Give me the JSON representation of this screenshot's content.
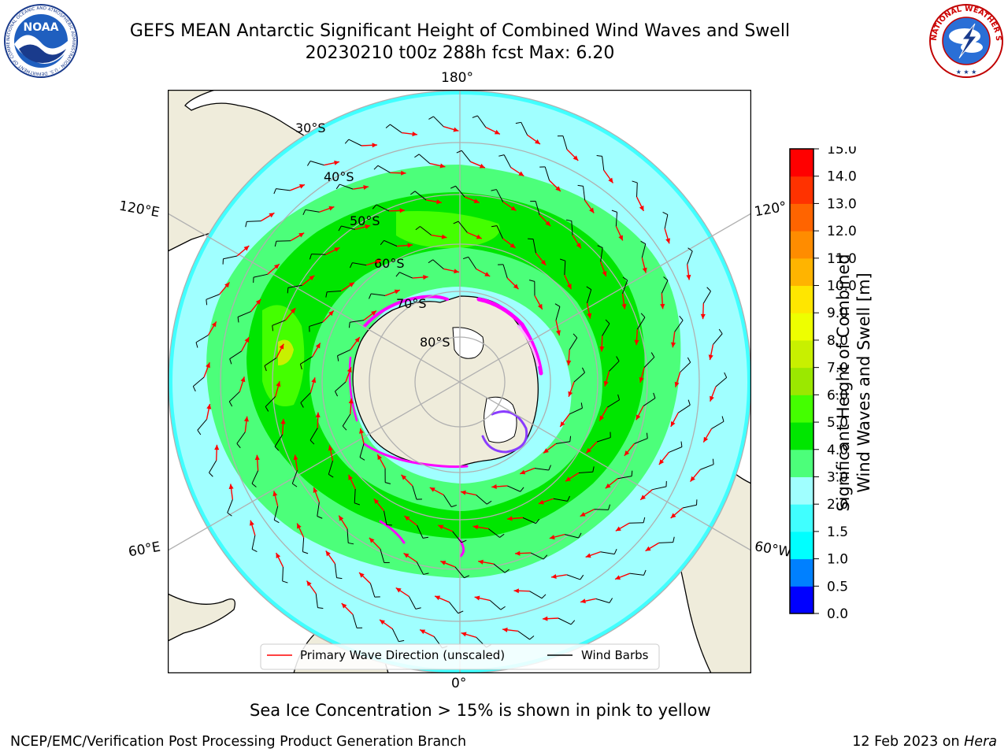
{
  "title": {
    "line1": "GEFS MEAN Antarctic Significant Height of Combined Wind Waves and Swell",
    "line2": "20230210 t00z 288h fcst   Max: 6.20"
  },
  "logos": {
    "left": {
      "text": "NOAA",
      "ring_text": "NATIONAL OCEANIC AND ATMOSPHERIC ADMINISTRATION · U.S. DEPARTMENT OF COMMERCE"
    },
    "right": {
      "ring_text": "NATIONAL WEATHER SERVICE"
    }
  },
  "map": {
    "projection": "south-polar-stereographic",
    "longitude_labels": {
      "top": "180°",
      "bottom": "0°",
      "upper_left": "120°E",
      "lower_left": "60°E",
      "upper_right": "120°",
      "lower_right": "60°W"
    },
    "latitude_labels": [
      "30°S",
      "40°S",
      "50°S",
      "60°S",
      "70°S",
      "80°S"
    ],
    "legend": [
      {
        "label": "Primary Wave Direction (unscaled)",
        "color": "#ff0000"
      },
      {
        "label": "Wind Barbs",
        "color": "#000000"
      }
    ]
  },
  "colorbar": {
    "label_line1": "Significant Height of Combined",
    "label_line2": "Wind Waves and Swell [m]",
    "ticks": [
      "0.0",
      "0.5",
      "1.0",
      "1.5",
      "2.0",
      "3.0",
      "4.0",
      "5.0",
      "6.0",
      "7.0",
      "8.0",
      "9.0",
      "10.0",
      "11.0",
      "12.0",
      "13.0",
      "14.0",
      "15.0"
    ],
    "colors": [
      "#0000ff",
      "#0080ff",
      "#00ffff",
      "#40ffff",
      "#a0ffff",
      "#4cff7a",
      "#00e600",
      "#44ff00",
      "#9be800",
      "#c8f000",
      "#eeff00",
      "#ffe600",
      "#ffb400",
      "#ff8c00",
      "#ff6400",
      "#ff3200",
      "#ff0000"
    ]
  },
  "caption": "Sea Ice Concentration > 15% is shown in pink to yellow",
  "footer": {
    "left": "NCEP/EMC/Verification Post Processing Product Generation Branch",
    "right_date": "12 Feb 2023 on ",
    "right_host": "Hera"
  }
}
